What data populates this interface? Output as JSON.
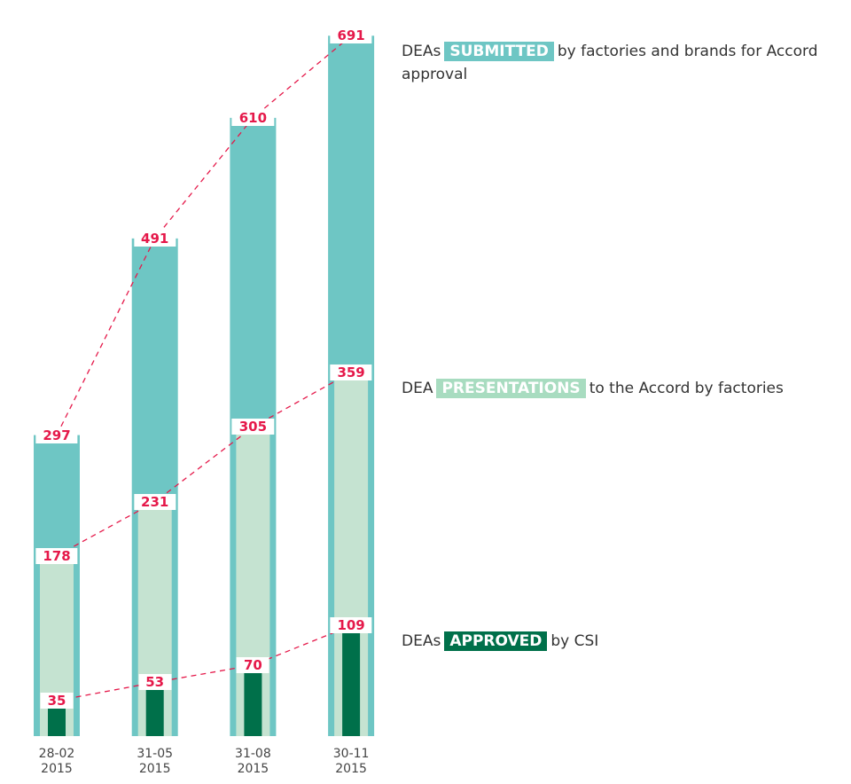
{
  "chart_data": {
    "type": "nested-bar",
    "categories": [
      "28-02 2015",
      "31-05 2015",
      "31-08 2015",
      "30-11 2015"
    ],
    "series": [
      {
        "name": "SUBMITTED",
        "label_before": "DEAs",
        "label_after": "by factories and brands for Accord approval",
        "color": "#6ec6c4",
        "values": [
          297,
          491,
          610,
          691
        ]
      },
      {
        "name": "PRESENTATIONS",
        "label_before": "DEA",
        "label_after": "to the Accord by factories",
        "color": "#c5e3d1",
        "legend_color": "#a8dcc0",
        "values": [
          178,
          231,
          305,
          359
        ]
      },
      {
        "name": "APPROVED",
        "label_before": "DEAs",
        "label_after": "by CSI",
        "color": "#00704a",
        "values": [
          35,
          53,
          70,
          109
        ]
      }
    ],
    "ylim": [
      0,
      700
    ],
    "label_color": "#e5194a"
  }
}
